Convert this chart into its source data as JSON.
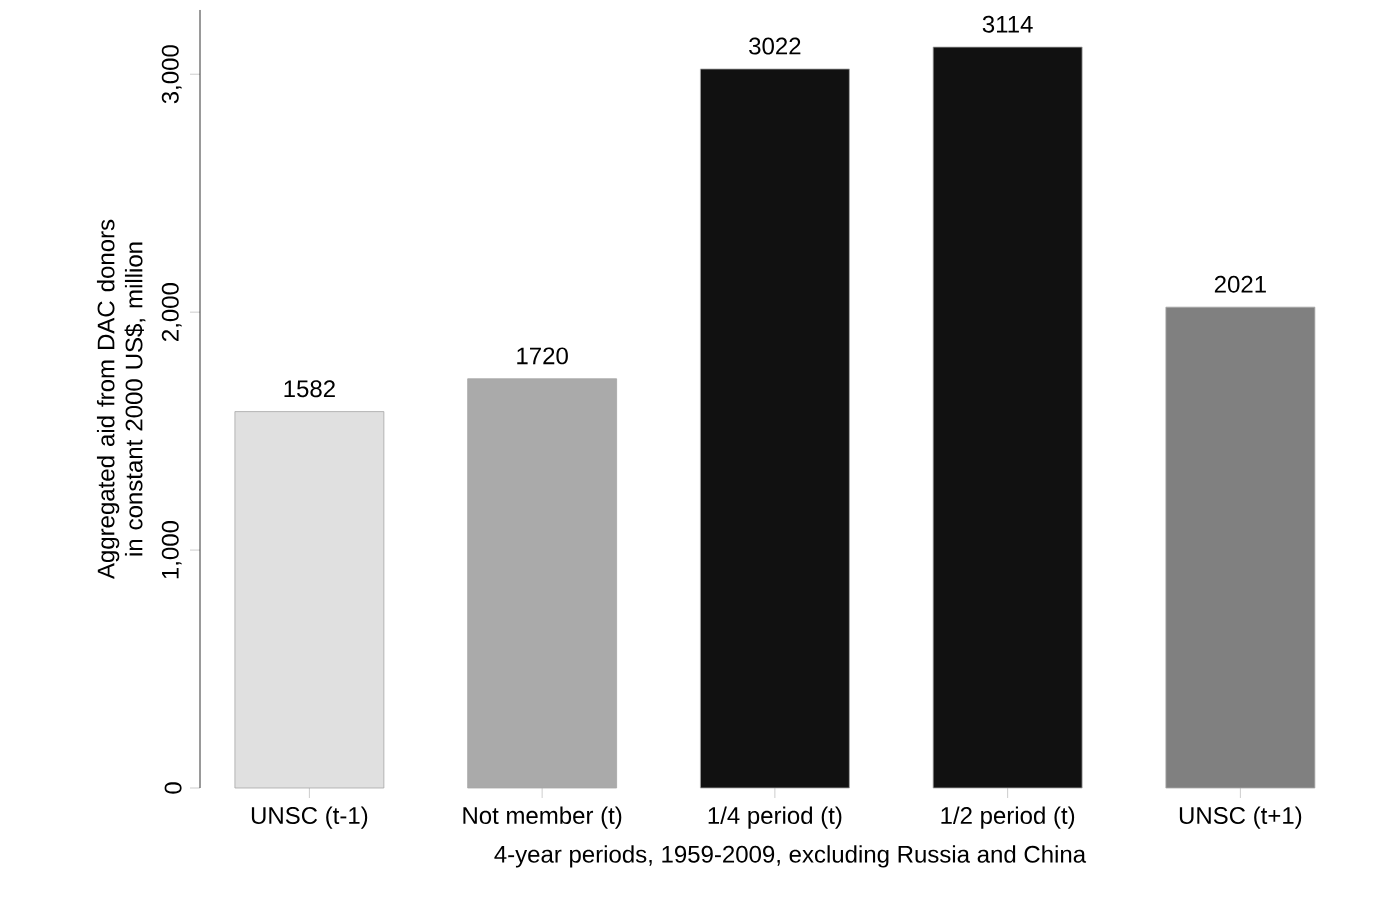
{
  "chart_data": {
    "type": "bar",
    "xlabel": "4-year periods, 1959-2009, excluding Russia and China",
    "ylabel": "Aggregated aid from DAC donors in constant 2000 US$, million",
    "categories": [
      "UNSC (t-1)",
      "Not member (t)",
      "1/4 period (t)",
      "1/2 period (t)",
      "UNSC (t+1)"
    ],
    "values": [
      1582,
      1720,
      3022,
      3114,
      2021
    ],
    "colors": [
      "#e0e0e0",
      "#aaaaaa",
      "#111111",
      "#111111",
      "#808080"
    ],
    "ylim": [
      0,
      3270
    ],
    "yticks": [
      0,
      {
        "value": 1000,
        "label": "1,000"
      },
      {
        "value": 2000,
        "label": "2,000"
      },
      {
        "value": 3000,
        "label": "3,000"
      }
    ],
    "data_labels": true,
    "grid": false
  }
}
